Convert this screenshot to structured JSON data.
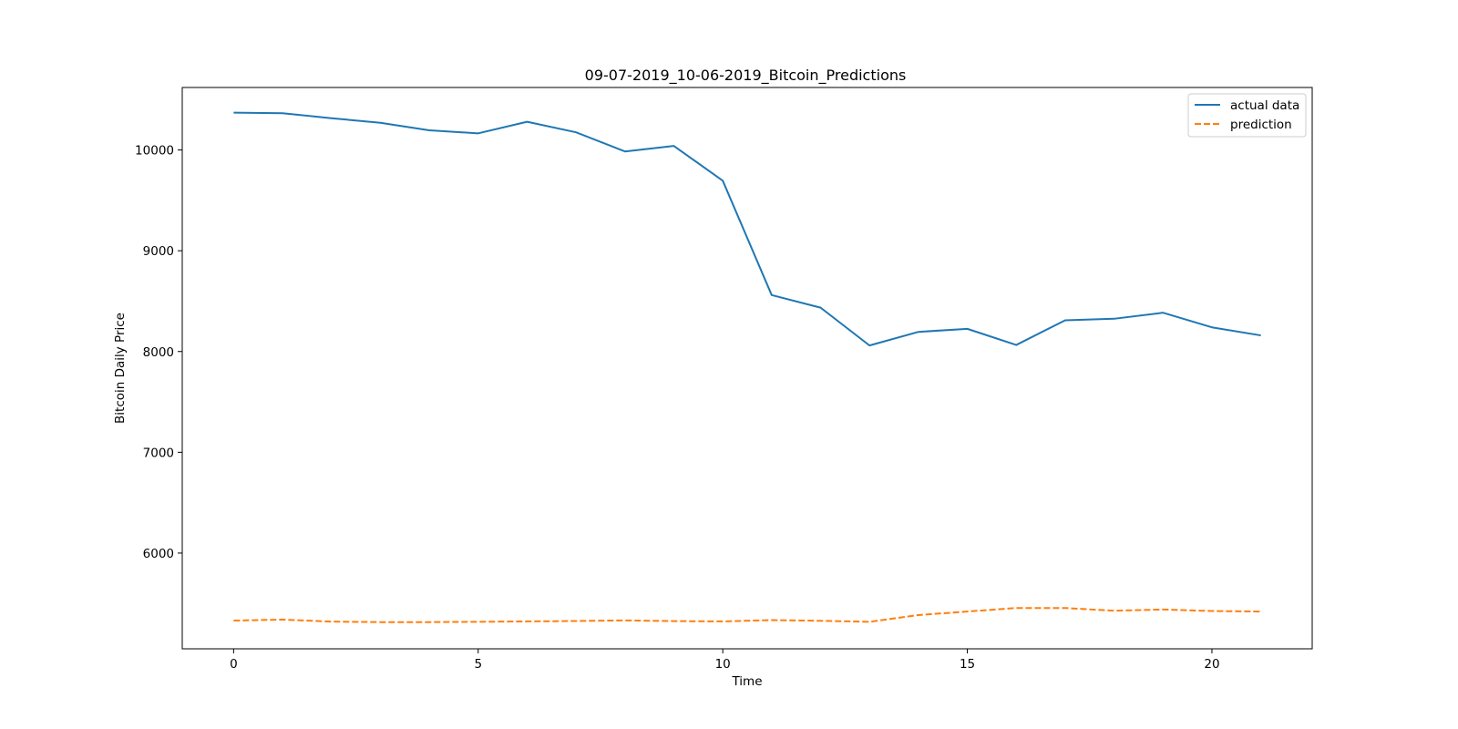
{
  "chart_data": {
    "type": "line",
    "title": "09-07-2019_10-06-2019_Bitcoin_Predictions",
    "xlabel": "Time",
    "ylabel": "Bitcoin Daily Price",
    "xlim": [
      -1.05,
      22.05
    ],
    "ylim": [
      5050,
      10620
    ],
    "xticks": [
      0,
      5,
      10,
      15,
      20
    ],
    "yticks": [
      6000,
      7000,
      8000,
      9000,
      10000
    ],
    "grid": false,
    "legend_position": "upper right",
    "x": [
      0,
      1,
      2,
      3,
      4,
      5,
      6,
      7,
      8,
      9,
      10,
      11,
      12,
      13,
      14,
      15,
      16,
      17,
      18,
      19,
      20,
      21
    ],
    "series": [
      {
        "name": "actual data",
        "color": "#1f77b4",
        "style": "solid",
        "values": [
          10370,
          10365,
          10315,
          10270,
          10195,
          10165,
          10280,
          10175,
          9985,
          10040,
          9695,
          8560,
          8435,
          8060,
          8195,
          8225,
          8065,
          8310,
          8325,
          8385,
          8240,
          8160
        ]
      },
      {
        "name": "prediction",
        "color": "#ff7f0e",
        "style": "dashed",
        "values": [
          5330,
          5340,
          5320,
          5315,
          5315,
          5318,
          5322,
          5326,
          5332,
          5325,
          5322,
          5335,
          5328,
          5318,
          5385,
          5420,
          5455,
          5455,
          5428,
          5440,
          5425,
          5420
        ]
      }
    ]
  }
}
